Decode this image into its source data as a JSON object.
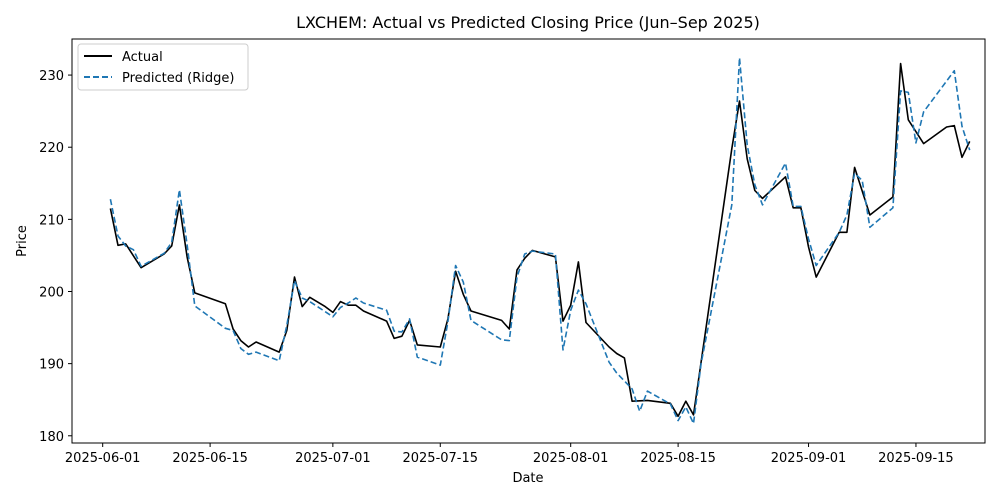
{
  "chart_data": {
    "type": "line",
    "title": "LXCHEM: Actual vs Predicted Closing Price (Jun–Sep 2025)",
    "xlabel": "Date",
    "ylabel": "Price",
    "xlim": [
      "2025-05-28",
      "2025-09-24"
    ],
    "ylim": [
      179,
      235
    ],
    "xticks": [
      "2025-06-01",
      "2025-06-15",
      "2025-07-01",
      "2025-07-15",
      "2025-08-01",
      "2025-08-15",
      "2025-09-01",
      "2025-09-15"
    ],
    "yticks": [
      180,
      190,
      200,
      210,
      220,
      230
    ],
    "grid": false,
    "legend": "upper-left",
    "series": [
      {
        "name": "Actual",
        "color": "#000000",
        "style": "solid",
        "points": [
          [
            "2025-06-02",
            211.5
          ],
          [
            "2025-06-03",
            206.4
          ],
          [
            "2025-06-04",
            206.6
          ],
          [
            "2025-06-06",
            203.3
          ],
          [
            "2025-06-09",
            205.2
          ],
          [
            "2025-06-10",
            206.3
          ],
          [
            "2025-06-11",
            212.0
          ],
          [
            "2025-06-12",
            204.8
          ],
          [
            "2025-06-13",
            199.8
          ],
          [
            "2025-06-17",
            198.3
          ],
          [
            "2025-06-18",
            194.8
          ],
          [
            "2025-06-19",
            193.2
          ],
          [
            "2025-06-20",
            192.3
          ],
          [
            "2025-06-21",
            193.0
          ],
          [
            "2025-06-24",
            191.6
          ],
          [
            "2025-06-25",
            194.6
          ],
          [
            "2025-06-26",
            202.0
          ],
          [
            "2025-06-27",
            197.9
          ],
          [
            "2025-06-28",
            199.2
          ],
          [
            "2025-06-30",
            197.9
          ],
          [
            "2025-07-01",
            197.1
          ],
          [
            "2025-07-02",
            198.6
          ],
          [
            "2025-07-03",
            198.1
          ],
          [
            "2025-07-04",
            198.1
          ],
          [
            "2025-07-05",
            197.3
          ],
          [
            "2025-07-08",
            195.9
          ],
          [
            "2025-07-09",
            193.5
          ],
          [
            "2025-07-10",
            193.8
          ],
          [
            "2025-07-11",
            196.0
          ],
          [
            "2025-07-12",
            192.6
          ],
          [
            "2025-07-15",
            192.3
          ],
          [
            "2025-07-16",
            196.2
          ],
          [
            "2025-07-17",
            202.8
          ],
          [
            "2025-07-18",
            199.6
          ],
          [
            "2025-07-19",
            197.3
          ],
          [
            "2025-07-23",
            196.0
          ],
          [
            "2025-07-24",
            194.8
          ],
          [
            "2025-07-25",
            203.0
          ],
          [
            "2025-07-26",
            204.6
          ],
          [
            "2025-07-27",
            205.7
          ],
          [
            "2025-07-30",
            204.8
          ],
          [
            "2025-07-31",
            195.9
          ],
          [
            "2025-08-01",
            198.1
          ],
          [
            "2025-08-02",
            204.1
          ],
          [
            "2025-08-03",
            195.7
          ],
          [
            "2025-08-06",
            192.3
          ],
          [
            "2025-08-07",
            191.4
          ],
          [
            "2025-08-08",
            190.8
          ],
          [
            "2025-08-09",
            184.8
          ],
          [
            "2025-08-11",
            184.9
          ],
          [
            "2025-08-14",
            184.5
          ],
          [
            "2025-08-15",
            182.7
          ],
          [
            "2025-08-16",
            184.8
          ],
          [
            "2025-08-17",
            182.9
          ],
          [
            "2025-08-22",
            219.8
          ],
          [
            "2025-08-23",
            226.4
          ],
          [
            "2025-08-24",
            218.4
          ],
          [
            "2025-08-25",
            214.0
          ],
          [
            "2025-08-26",
            212.9
          ],
          [
            "2025-08-29",
            215.9
          ],
          [
            "2025-08-30",
            211.6
          ],
          [
            "2025-08-31",
            211.6
          ],
          [
            "2025-09-01",
            206.2
          ],
          [
            "2025-09-02",
            202.0
          ],
          [
            "2025-09-05",
            208.2
          ],
          [
            "2025-09-06",
            208.2
          ],
          [
            "2025-09-07",
            217.2
          ],
          [
            "2025-09-09",
            210.6
          ],
          [
            "2025-09-12",
            213.1
          ],
          [
            "2025-09-13",
            231.6
          ],
          [
            "2025-09-14",
            223.8
          ],
          [
            "2025-09-16",
            220.5
          ],
          [
            "2025-09-19",
            222.8
          ],
          [
            "2025-09-20",
            223.0
          ],
          [
            "2025-09-21",
            218.6
          ],
          [
            "2025-09-22",
            220.8
          ]
        ]
      },
      {
        "name": "Predicted (Ridge)",
        "color": "#1f77b4",
        "style": "dashed",
        "points": [
          [
            "2025-06-02",
            212.8
          ],
          [
            "2025-06-03",
            207.7
          ],
          [
            "2025-06-04",
            206.3
          ],
          [
            "2025-06-05",
            205.8
          ],
          [
            "2025-06-06",
            203.5
          ],
          [
            "2025-06-09",
            205.3
          ],
          [
            "2025-06-10",
            206.8
          ],
          [
            "2025-06-11",
            214.1
          ],
          [
            "2025-06-12",
            206.5
          ],
          [
            "2025-06-13",
            198.0
          ],
          [
            "2025-06-17",
            194.9
          ],
          [
            "2025-06-18",
            194.6
          ],
          [
            "2025-06-19",
            192.1
          ],
          [
            "2025-06-20",
            191.3
          ],
          [
            "2025-06-21",
            191.6
          ],
          [
            "2025-06-24",
            190.4
          ],
          [
            "2025-06-25",
            195.3
          ],
          [
            "2025-06-26",
            201.5
          ],
          [
            "2025-06-27",
            199.1
          ],
          [
            "2025-06-28",
            198.6
          ],
          [
            "2025-06-30",
            197.2
          ],
          [
            "2025-07-01",
            196.5
          ],
          [
            "2025-07-02",
            197.8
          ],
          [
            "2025-07-03",
            198.4
          ],
          [
            "2025-07-04",
            199.1
          ],
          [
            "2025-07-05",
            198.4
          ],
          [
            "2025-07-08",
            197.4
          ],
          [
            "2025-07-09",
            194.5
          ],
          [
            "2025-07-10",
            194.4
          ],
          [
            "2025-07-11",
            196.2
          ],
          [
            "2025-07-12",
            190.9
          ],
          [
            "2025-07-15",
            189.8
          ],
          [
            "2025-07-16",
            195.8
          ],
          [
            "2025-07-17",
            203.6
          ],
          [
            "2025-07-18",
            201.3
          ],
          [
            "2025-07-19",
            196.0
          ],
          [
            "2025-07-23",
            193.3
          ],
          [
            "2025-07-24",
            193.2
          ],
          [
            "2025-07-25",
            202.0
          ],
          [
            "2025-07-26",
            205.2
          ],
          [
            "2025-07-27",
            205.6
          ],
          [
            "2025-07-30",
            205.2
          ],
          [
            "2025-07-31",
            191.9
          ],
          [
            "2025-08-01",
            197.4
          ],
          [
            "2025-08-02",
            200.2
          ],
          [
            "2025-08-03",
            198.3
          ],
          [
            "2025-08-06",
            190.2
          ],
          [
            "2025-08-07",
            188.7
          ],
          [
            "2025-08-09",
            186.5
          ],
          [
            "2025-08-10",
            183.4
          ],
          [
            "2025-08-11",
            186.2
          ],
          [
            "2025-08-14",
            184.4
          ],
          [
            "2025-08-15",
            182.1
          ],
          [
            "2025-08-16",
            184.0
          ],
          [
            "2025-08-17",
            181.7
          ],
          [
            "2025-08-18",
            190.0
          ],
          [
            "2025-08-22",
            212.0
          ],
          [
            "2025-08-23",
            232.4
          ],
          [
            "2025-08-24",
            220.3
          ],
          [
            "2025-08-25",
            214.8
          ],
          [
            "2025-08-26",
            212.0
          ],
          [
            "2025-08-29",
            217.8
          ],
          [
            "2025-08-30",
            211.8
          ],
          [
            "2025-08-31",
            211.8
          ],
          [
            "2025-09-01",
            207.3
          ],
          [
            "2025-09-02",
            203.6
          ],
          [
            "2025-09-05",
            208.2
          ],
          [
            "2025-09-06",
            210.6
          ],
          [
            "2025-09-07",
            216.4
          ],
          [
            "2025-09-08",
            215.4
          ],
          [
            "2025-09-09",
            208.9
          ],
          [
            "2025-09-12",
            211.6
          ],
          [
            "2025-09-13",
            227.8
          ],
          [
            "2025-09-14",
            227.6
          ],
          [
            "2025-09-15",
            220.6
          ],
          [
            "2025-09-16",
            224.9
          ],
          [
            "2025-09-20",
            230.6
          ],
          [
            "2025-09-21",
            222.9
          ],
          [
            "2025-09-22",
            219.6
          ]
        ]
      }
    ]
  }
}
